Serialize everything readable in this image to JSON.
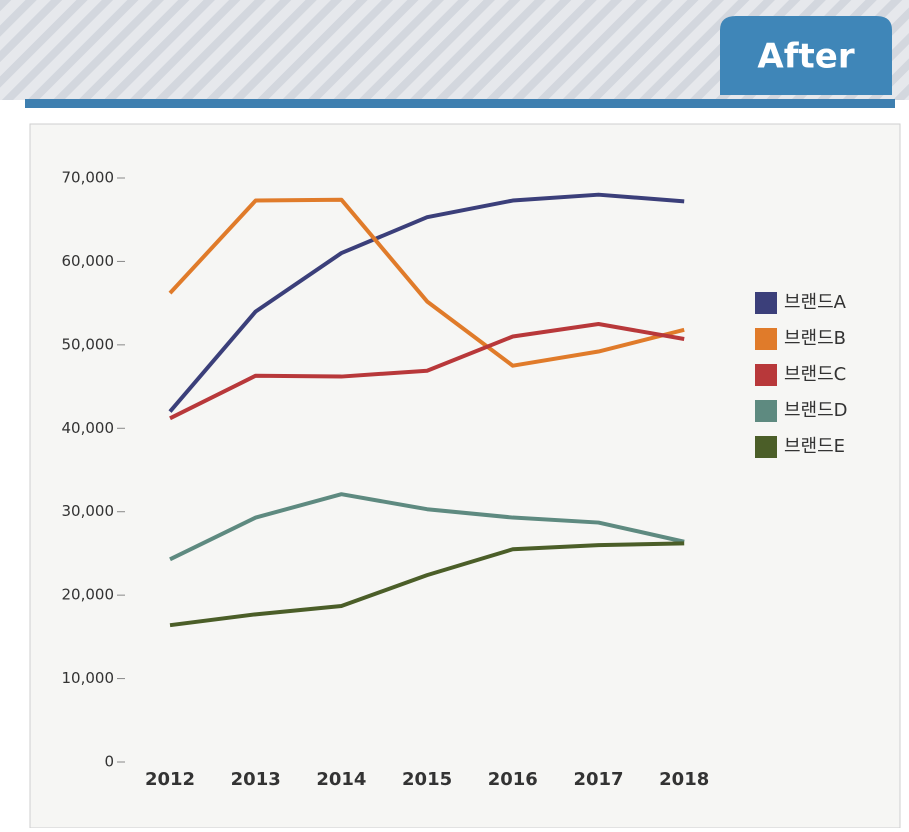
{
  "badge": "After",
  "chart_data": {
    "type": "line",
    "categories": [
      "2012",
      "2013",
      "2014",
      "2015",
      "2016",
      "2017",
      "2018"
    ],
    "series": [
      {
        "name": "브랜드A",
        "color": "#3b3f7a",
        "values": [
          42000,
          54000,
          61000,
          65300,
          67300,
          68000,
          67200
        ]
      },
      {
        "name": "브랜드B",
        "color": "#e07b2a",
        "values": [
          56200,
          67300,
          67400,
          55200,
          47500,
          49200,
          51800
        ]
      },
      {
        "name": "브랜드C",
        "color": "#b8383a",
        "values": [
          41200,
          46300,
          46200,
          46900,
          51000,
          52500,
          50700
        ]
      },
      {
        "name": "브랜드D",
        "color": "#5e8a80",
        "values": [
          24300,
          29300,
          32100,
          30300,
          29300,
          28700,
          26400
        ]
      },
      {
        "name": "브랜드E",
        "color": "#4b5e28",
        "values": [
          16400,
          17700,
          18700,
          22400,
          25500,
          26000,
          26200
        ]
      }
    ],
    "ylim": [
      0,
      70000
    ],
    "yticks": [
      0,
      {
        "value": 10000,
        "label": "10,000"
      },
      {
        "value": 20000,
        "label": "20,000"
      },
      {
        "value": 30000,
        "label": "30,000"
      },
      {
        "value": 40000,
        "label": "40,000"
      },
      {
        "value": 50000,
        "label": "50,000"
      },
      {
        "value": 60000,
        "label": "60,000"
      },
      {
        "value": 70000,
        "label": "70,000"
      }
    ],
    "grid": false,
    "legend": "right"
  }
}
